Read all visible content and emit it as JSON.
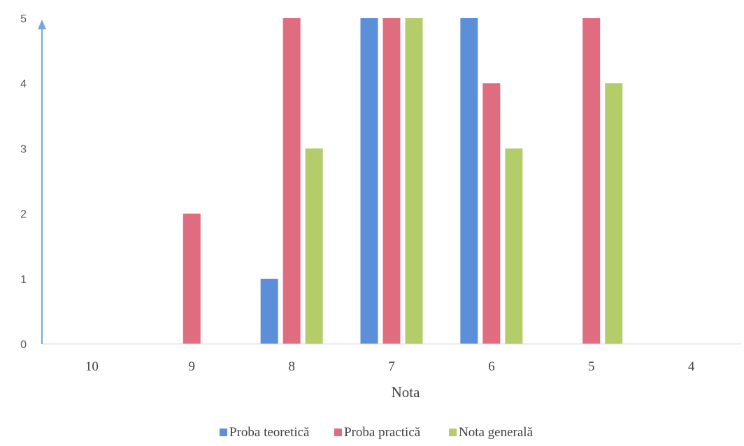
{
  "chart_data": {
    "type": "bar",
    "title": "",
    "xlabel": "Nota",
    "ylabel": "",
    "categories": [
      "10",
      "9",
      "8",
      "7",
      "6",
      "5",
      "4"
    ],
    "ylim": [
      0,
      5
    ],
    "yticks": [
      0,
      1,
      2,
      3,
      4,
      5
    ],
    "grid": false,
    "legend_position": "bottom",
    "series": [
      {
        "name": "Proba teoretică",
        "color": "#5B8FD9",
        "values": [
          0,
          0,
          1,
          5,
          5,
          0,
          0
        ]
      },
      {
        "name": "Proba practică",
        "color": "#E06C80",
        "values": [
          0,
          2,
          5,
          5,
          4,
          5,
          0
        ]
      },
      {
        "name": "Nota generală",
        "color": "#B4CC6A",
        "values": [
          0,
          0,
          3,
          5,
          3,
          4,
          0
        ]
      }
    ],
    "axis_color": "#6FA8E8"
  }
}
